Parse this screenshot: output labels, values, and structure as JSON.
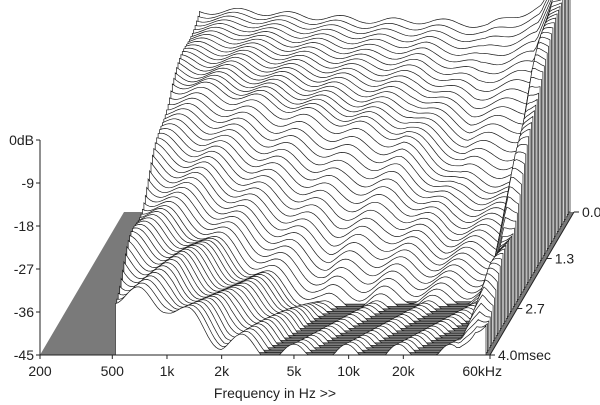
{
  "chart_data": {
    "type": "waterfall",
    "title": "",
    "xlabel": "Frequency in Hz >>",
    "ylabel": "",
    "zlabel": "",
    "x_scale": "log",
    "x_range_hz": [
      200,
      60000
    ],
    "x_ticks": [
      {
        "value": 200,
        "label": "200"
      },
      {
        "value": 500,
        "label": "500"
      },
      {
        "value": 1000,
        "label": "1k"
      },
      {
        "value": 2000,
        "label": "2k"
      },
      {
        "value": 5000,
        "label": "5k"
      },
      {
        "value": 10000,
        "label": "10k"
      },
      {
        "value": 20000,
        "label": "20k"
      },
      {
        "value": 60000,
        "label": "60kHz"
      }
    ],
    "y_range_db": [
      -45,
      0
    ],
    "y_ticks": [
      {
        "value": 0,
        "label": "0dB"
      },
      {
        "value": -9,
        "label": "-9"
      },
      {
        "value": -18,
        "label": "-18"
      },
      {
        "value": -27,
        "label": "-27"
      },
      {
        "value": -36,
        "label": "-36"
      },
      {
        "value": -45,
        "label": "-45"
      }
    ],
    "time_range_ms": [
      0,
      4.0
    ],
    "time_ticks": [
      {
        "value": 0.0,
        "label": "0.0"
      },
      {
        "value": 1.3,
        "label": "1.3"
      },
      {
        "value": 2.7,
        "label": "2.7"
      },
      {
        "value": 4.0,
        "label": "4.0msec"
      }
    ],
    "slice_count": 60,
    "series": [
      {
        "time_ms": 0.0,
        "freq_hz": [
          500,
          1000,
          2000,
          5000,
          10000,
          20000,
          40000,
          50000
        ],
        "level_db": [
          -3,
          -3,
          -4,
          -5,
          -5,
          -6,
          -2,
          5
        ]
      },
      {
        "time_ms": 1.3,
        "freq_hz": [
          500,
          1000,
          2000,
          5000,
          10000,
          20000,
          40000,
          50000
        ],
        "level_db": [
          -8,
          -10,
          -13,
          -17,
          -20,
          -28,
          -30,
          -5
        ]
      },
      {
        "time_ms": 2.7,
        "freq_hz": [
          500,
          1000,
          2000,
          5000,
          10000,
          20000,
          40000,
          50000
        ],
        "level_db": [
          -22,
          -28,
          -36,
          -45,
          -45,
          -45,
          -45,
          -28
        ]
      },
      {
        "time_ms": 4.0,
        "freq_hz": [
          500,
          1000,
          2000,
          5000,
          10000,
          20000,
          40000,
          50000
        ],
        "level_db": [
          -32,
          -34,
          -42,
          -45,
          -45,
          -45,
          -45,
          -38
        ]
      }
    ],
    "grid": false,
    "legend": "none",
    "colors": {
      "line": "#1a1a1a",
      "face": "#ffffff",
      "floor": "#7a7a7a"
    }
  }
}
